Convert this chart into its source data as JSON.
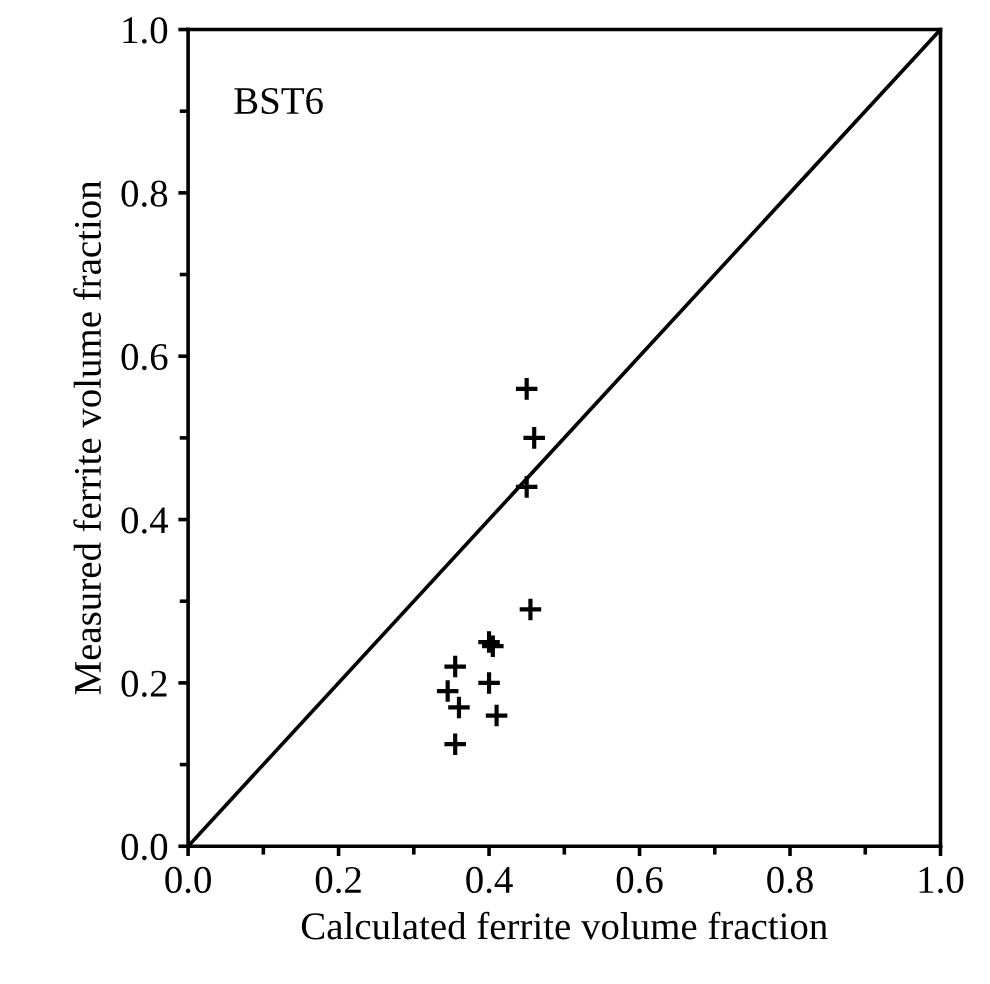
{
  "chart_data": {
    "type": "scatter",
    "xlabel": "Calculated ferrite volume fraction",
    "ylabel": "Measured ferrite volume fraction",
    "annotations": [
      {
        "text": "BST6"
      }
    ],
    "series": [
      {
        "color": "#000000",
        "marker": "cross",
        "x": [
          0.45,
          0.46,
          0.45,
          0.455,
          0.4,
          0.405,
          0.355,
          0.345,
          0.4,
          0.36,
          0.41,
          0.355
        ],
        "values": [
          0.56,
          0.5,
          0.44,
          0.29,
          0.25,
          0.245,
          0.22,
          0.19,
          0.2,
          0.17,
          0.16,
          0.125
        ]
      },
      {
        "type": "line",
        "color": "#000000",
        "marker": "none",
        "x": [
          0.0,
          1.0
        ],
        "values": [
          0.0,
          1.0
        ]
      }
    ],
    "xlim": [
      0.0,
      1.0
    ],
    "ylim": [
      0.0,
      1.0
    ],
    "xticks": [
      {
        "value": 0.0,
        "label": "0.0"
      },
      0.2,
      0.4,
      0.6,
      0.8,
      {
        "value": 1.0,
        "label": "1.0"
      }
    ],
    "yticks": [
      {
        "value": 0.0,
        "label": "0.0"
      },
      0.2,
      0.4,
      0.6,
      0.8,
      {
        "value": 1.0,
        "label": "1.0"
      }
    ],
    "grid": false,
    "legend": false
  }
}
